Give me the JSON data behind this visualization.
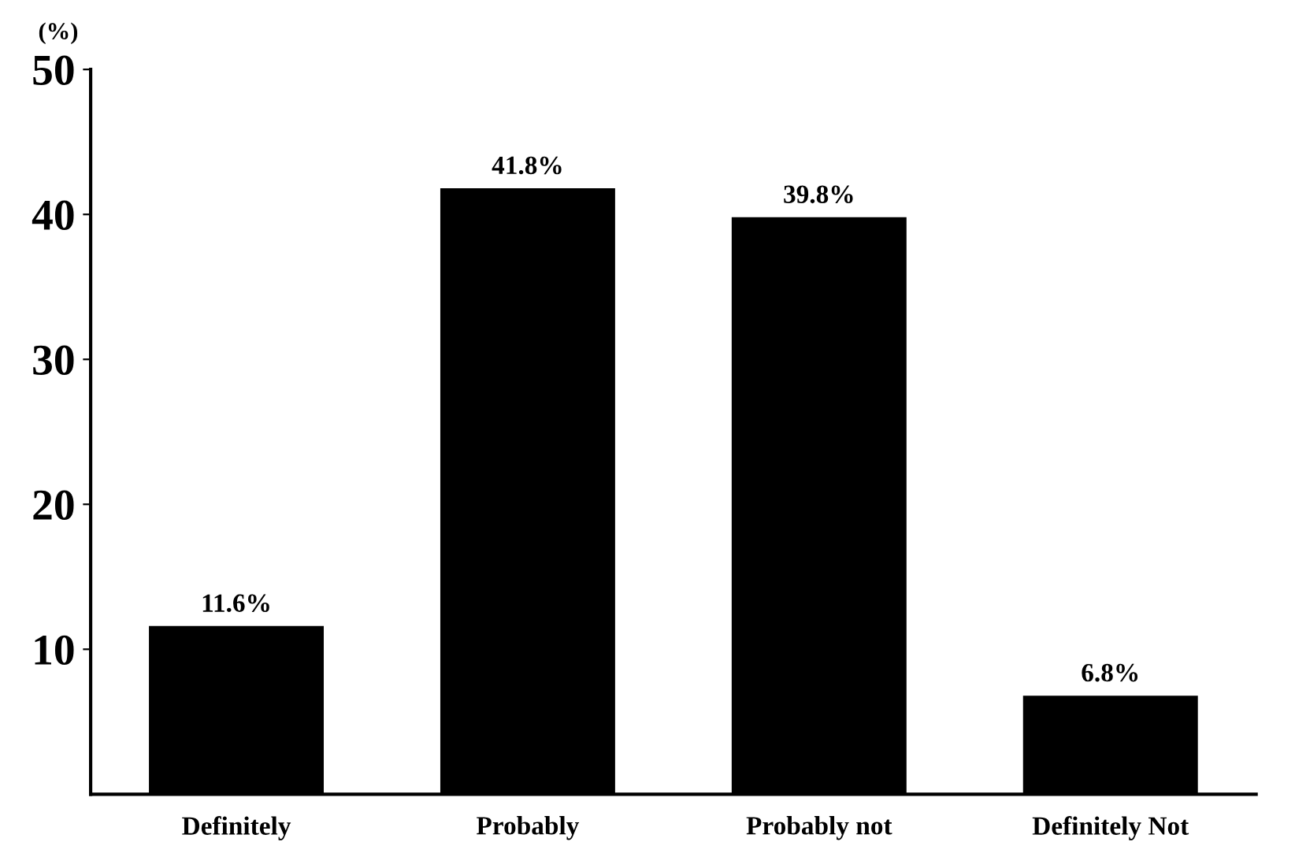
{
  "chart_data": {
    "type": "bar",
    "ylabel": "(%)",
    "categories": [
      "Definitely",
      "Probably",
      "Probably not",
      "Definitely Not"
    ],
    "values": [
      11.6,
      41.8,
      39.8,
      6.8
    ],
    "value_labels": [
      "11.6%",
      "41.8%",
      "39.8%",
      "6.8%"
    ],
    "color": "#000000",
    "ylim": [
      0,
      50
    ],
    "yticks": [
      10,
      20,
      30,
      40,
      50
    ],
    "grid": false,
    "legend": false
  }
}
